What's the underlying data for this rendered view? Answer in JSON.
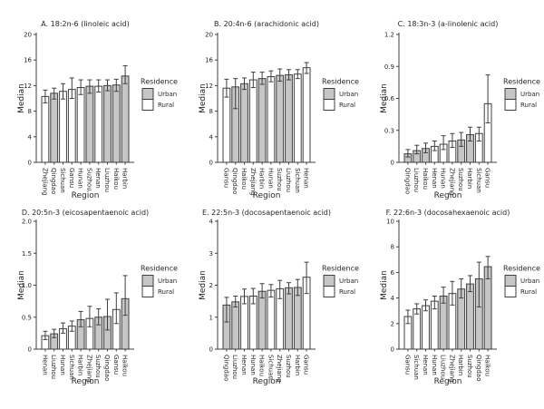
{
  "axis": {
    "xlabel": "Region",
    "ylabel": "Median"
  },
  "legend": {
    "title": "Residence",
    "items": [
      {
        "label": "Urban",
        "fill": "#c6c6c6"
      },
      {
        "label": "Rural",
        "fill": "#ffffff"
      }
    ]
  },
  "colors": {
    "urban_fill": "#c6c6c6",
    "rural_fill": "#ffffff",
    "bar_border": "#3f3f3f",
    "axis_line": "#3f3f3f",
    "text": "#262626",
    "background": "#ffffff"
  },
  "chart_data": [
    {
      "type": "bar",
      "title": "A. 18:2n-6 (linoleic acid)",
      "xlabel": "Region",
      "ylabel": "Median",
      "ylim": [
        0,
        20
      ],
      "yticks": [
        0,
        4,
        8,
        12,
        16,
        20
      ],
      "ytick_labels": [
        "0",
        "4",
        "8",
        "12",
        "16",
        "20"
      ],
      "legend_position": "right",
      "grid": false,
      "bars": [
        {
          "region": "Zhejiang",
          "residence": "Rural",
          "median": 10.3,
          "err_low": 9.3,
          "err_high": 11.3
        },
        {
          "region": "Qingdao",
          "residence": "Urban",
          "median": 10.8,
          "err_low": 9.9,
          "err_high": 11.6
        },
        {
          "region": "Sichuan",
          "residence": "Rural",
          "median": 11.1,
          "err_low": 9.9,
          "err_high": 12.3
        },
        {
          "region": "Gansu",
          "residence": "Rural",
          "median": 11.4,
          "err_low": 10.0,
          "err_high": 13.2
        },
        {
          "region": "Hunan",
          "residence": "Rural",
          "median": 11.7,
          "err_low": 10.6,
          "err_high": 12.9
        },
        {
          "region": "Suzhou",
          "residence": "Urban",
          "median": 11.9,
          "err_low": 10.8,
          "err_high": 12.9
        },
        {
          "region": "Henan",
          "residence": "Rural",
          "median": 11.9,
          "err_low": 11.0,
          "err_high": 12.9
        },
        {
          "region": "Liuzhou",
          "residence": "Urban",
          "median": 12.0,
          "err_low": 11.2,
          "err_high": 12.9
        },
        {
          "region": "Haikou",
          "residence": "Urban",
          "median": 12.1,
          "err_low": 11.1,
          "err_high": 13.0
        },
        {
          "region": "Harbin",
          "residence": "Urban",
          "median": 13.5,
          "err_low": 12.3,
          "err_high": 15.1
        }
      ]
    },
    {
      "type": "bar",
      "title": "B. 20:4n-6 (arachidonic acid)",
      "xlabel": "Region",
      "ylabel": "Median",
      "ylim": [
        0,
        20
      ],
      "yticks": [
        0,
        4,
        8,
        12,
        16,
        20
      ],
      "ytick_labels": [
        "0",
        "4",
        "8",
        "12",
        "16",
        "20"
      ],
      "legend_position": "right",
      "grid": false,
      "bars": [
        {
          "region": "Gansu",
          "residence": "Rural",
          "median": 11.6,
          "err_low": 10.2,
          "err_high": 13.0
        },
        {
          "region": "Qingdao",
          "residence": "Urban",
          "median": 11.8,
          "err_low": 8.4,
          "err_high": 13.1
        },
        {
          "region": "Haikou",
          "residence": "Urban",
          "median": 12.3,
          "err_low": 11.4,
          "err_high": 13.2
        },
        {
          "region": "Zhejiang",
          "residence": "Rural",
          "median": 12.9,
          "err_low": 11.7,
          "err_high": 14.1
        },
        {
          "region": "Harbin",
          "residence": "Urban",
          "median": 13.1,
          "err_low": 12.2,
          "err_high": 14.1
        },
        {
          "region": "Hunan",
          "residence": "Rural",
          "median": 13.4,
          "err_low": 12.6,
          "err_high": 14.3
        },
        {
          "region": "Suzhou",
          "residence": "Urban",
          "median": 13.6,
          "err_low": 12.7,
          "err_high": 14.6
        },
        {
          "region": "Liuzhou",
          "residence": "Urban",
          "median": 13.7,
          "err_low": 12.9,
          "err_high": 14.5
        },
        {
          "region": "Sichuan",
          "residence": "Rural",
          "median": 13.8,
          "err_low": 13.1,
          "err_high": 14.5
        },
        {
          "region": "Henan",
          "residence": "Rural",
          "median": 14.8,
          "err_low": 13.9,
          "err_high": 15.6
        }
      ]
    },
    {
      "type": "bar",
      "title": "C. 18:3n-3 (a-linolenic acid)",
      "xlabel": "Region",
      "ylabel": "Median",
      "ylim": [
        0,
        1.2
      ],
      "yticks": [
        0,
        0.3,
        0.6,
        0.9,
        1.2
      ],
      "ytick_labels": [
        "0",
        "0.3",
        "0.6",
        "0.9",
        "1.2"
      ],
      "legend_position": "right",
      "grid": false,
      "bars": [
        {
          "region": "Qingdao",
          "residence": "Urban",
          "median": 0.08,
          "err_low": 0.05,
          "err_high": 0.12
        },
        {
          "region": "Liuzhou",
          "residence": "Urban",
          "median": 0.11,
          "err_low": 0.08,
          "err_high": 0.16
        },
        {
          "region": "Haikou",
          "residence": "Urban",
          "median": 0.13,
          "err_low": 0.09,
          "err_high": 0.18
        },
        {
          "region": "Henan",
          "residence": "Rural",
          "median": 0.15,
          "err_low": 0.11,
          "err_high": 0.2
        },
        {
          "region": "Hunan",
          "residence": "Rural",
          "median": 0.17,
          "err_low": 0.12,
          "err_high": 0.25
        },
        {
          "region": "Zhejiang",
          "residence": "Rural",
          "median": 0.2,
          "err_low": 0.14,
          "err_high": 0.27
        },
        {
          "region": "Suzhou",
          "residence": "Urban",
          "median": 0.21,
          "err_low": 0.15,
          "err_high": 0.28
        },
        {
          "region": "Harbin",
          "residence": "Urban",
          "median": 0.26,
          "err_low": 0.2,
          "err_high": 0.33
        },
        {
          "region": "Sichuan",
          "residence": "Rural",
          "median": 0.27,
          "err_low": 0.2,
          "err_high": 0.33
        },
        {
          "region": "Gansu",
          "residence": "Rural",
          "median": 0.55,
          "err_low": 0.37,
          "err_high": 0.82
        }
      ]
    },
    {
      "type": "bar",
      "title": "D. 20:5n-3 (eicosapentaenoic acid)",
      "xlabel": "Region",
      "ylabel": "Median",
      "ylim": [
        0,
        2.0
      ],
      "yticks": [
        0,
        0.5,
        1.0,
        1.5,
        2.0
      ],
      "ytick_labels": [
        "0",
        "0.5",
        "1.0",
        "1.5",
        "2.0"
      ],
      "legend_position": "right",
      "grid": false,
      "bars": [
        {
          "region": "Henan",
          "residence": "Rural",
          "median": 0.21,
          "err_low": 0.15,
          "err_high": 0.28
        },
        {
          "region": "Liuzhou",
          "residence": "Urban",
          "median": 0.24,
          "err_low": 0.18,
          "err_high": 0.31
        },
        {
          "region": "Hunan",
          "residence": "Rural",
          "median": 0.32,
          "err_low": 0.25,
          "err_high": 0.41
        },
        {
          "region": "Sichuan",
          "residence": "Rural",
          "median": 0.36,
          "err_low": 0.28,
          "err_high": 0.44
        },
        {
          "region": "Harbin",
          "residence": "Urban",
          "median": 0.46,
          "err_low": 0.35,
          "err_high": 0.59
        },
        {
          "region": "Zhejiang",
          "residence": "Rural",
          "median": 0.48,
          "err_low": 0.35,
          "err_high": 0.67
        },
        {
          "region": "Suzhou",
          "residence": "Urban",
          "median": 0.5,
          "err_low": 0.38,
          "err_high": 0.63
        },
        {
          "region": "Qingdao",
          "residence": "Urban",
          "median": 0.51,
          "err_low": 0.3,
          "err_high": 0.78
        },
        {
          "region": "Gansu",
          "residence": "Rural",
          "median": 0.62,
          "err_low": 0.4,
          "err_high": 0.88
        },
        {
          "region": "Haikou",
          "residence": "Urban",
          "median": 0.79,
          "err_low": 0.53,
          "err_high": 1.15
        }
      ]
    },
    {
      "type": "bar",
      "title": "E. 22:5n-3 (docosapentaenoic acid)",
      "xlabel": "Region",
      "ylabel": "Median",
      "ylim": [
        0,
        4
      ],
      "yticks": [
        0,
        1,
        2,
        3,
        4
      ],
      "ytick_labels": [
        "0",
        "1",
        "2",
        "3",
        "4"
      ],
      "legend_position": "right",
      "grid": false,
      "bars": [
        {
          "region": "Qingdao",
          "residence": "Urban",
          "median": 1.38,
          "err_low": 0.85,
          "err_high": 1.62
        },
        {
          "region": "Liuzhou",
          "residence": "Urban",
          "median": 1.48,
          "err_low": 1.32,
          "err_high": 1.66
        },
        {
          "region": "Henan",
          "residence": "Rural",
          "median": 1.65,
          "err_low": 1.42,
          "err_high": 1.88
        },
        {
          "region": "Hunan",
          "residence": "Rural",
          "median": 1.66,
          "err_low": 1.42,
          "err_high": 1.9
        },
        {
          "region": "Haikou",
          "residence": "Urban",
          "median": 1.81,
          "err_low": 1.6,
          "err_high": 2.05
        },
        {
          "region": "Sichuan",
          "residence": "Rural",
          "median": 1.84,
          "err_low": 1.63,
          "err_high": 2.02
        },
        {
          "region": "Zhejiang",
          "residence": "Rural",
          "median": 1.89,
          "err_low": 1.58,
          "err_high": 2.15
        },
        {
          "region": "Suzhou",
          "residence": "Urban",
          "median": 1.92,
          "err_low": 1.73,
          "err_high": 2.08
        },
        {
          "region": "Harbin",
          "residence": "Urban",
          "median": 1.93,
          "err_low": 1.68,
          "err_high": 2.18
        },
        {
          "region": "Gansu",
          "residence": "Rural",
          "median": 2.25,
          "err_low": 1.74,
          "err_high": 2.72
        }
      ]
    },
    {
      "type": "bar",
      "title": "F. 22:6n-3 (docosahexaenoic acid)",
      "xlabel": "Region",
      "ylabel": "Median",
      "ylim": [
        0,
        10
      ],
      "yticks": [
        0,
        2,
        4,
        6,
        8,
        10
      ],
      "ytick_labels": [
        "0",
        "2",
        "4",
        "6",
        "8",
        "10"
      ],
      "legend_position": "right",
      "grid": false,
      "bars": [
        {
          "region": "Gansu",
          "residence": "Rural",
          "median": 2.55,
          "err_low": 2.0,
          "err_high": 3.05
        },
        {
          "region": "Sichuan",
          "residence": "Rural",
          "median": 3.15,
          "err_low": 2.75,
          "err_high": 3.55
        },
        {
          "region": "Henan",
          "residence": "Rural",
          "median": 3.4,
          "err_low": 3.0,
          "err_high": 3.85
        },
        {
          "region": "Hunan",
          "residence": "Rural",
          "median": 3.75,
          "err_low": 3.15,
          "err_high": 4.15
        },
        {
          "region": "Liuzhou",
          "residence": "Urban",
          "median": 4.15,
          "err_low": 3.6,
          "err_high": 4.85
        },
        {
          "region": "Zhejiang",
          "residence": "Rural",
          "median": 4.35,
          "err_low": 3.45,
          "err_high": 5.3
        },
        {
          "region": "Harbin",
          "residence": "Urban",
          "median": 4.7,
          "err_low": 4.0,
          "err_high": 5.5
        },
        {
          "region": "Suzhou",
          "residence": "Urban",
          "median": 5.1,
          "err_low": 4.5,
          "err_high": 5.75
        },
        {
          "region": "Qingdao",
          "residence": "Urban",
          "median": 5.5,
          "err_low": 3.3,
          "err_high": 6.8
        },
        {
          "region": "Haikou",
          "residence": "Urban",
          "median": 6.45,
          "err_low": 5.5,
          "err_high": 7.25
        }
      ]
    }
  ]
}
